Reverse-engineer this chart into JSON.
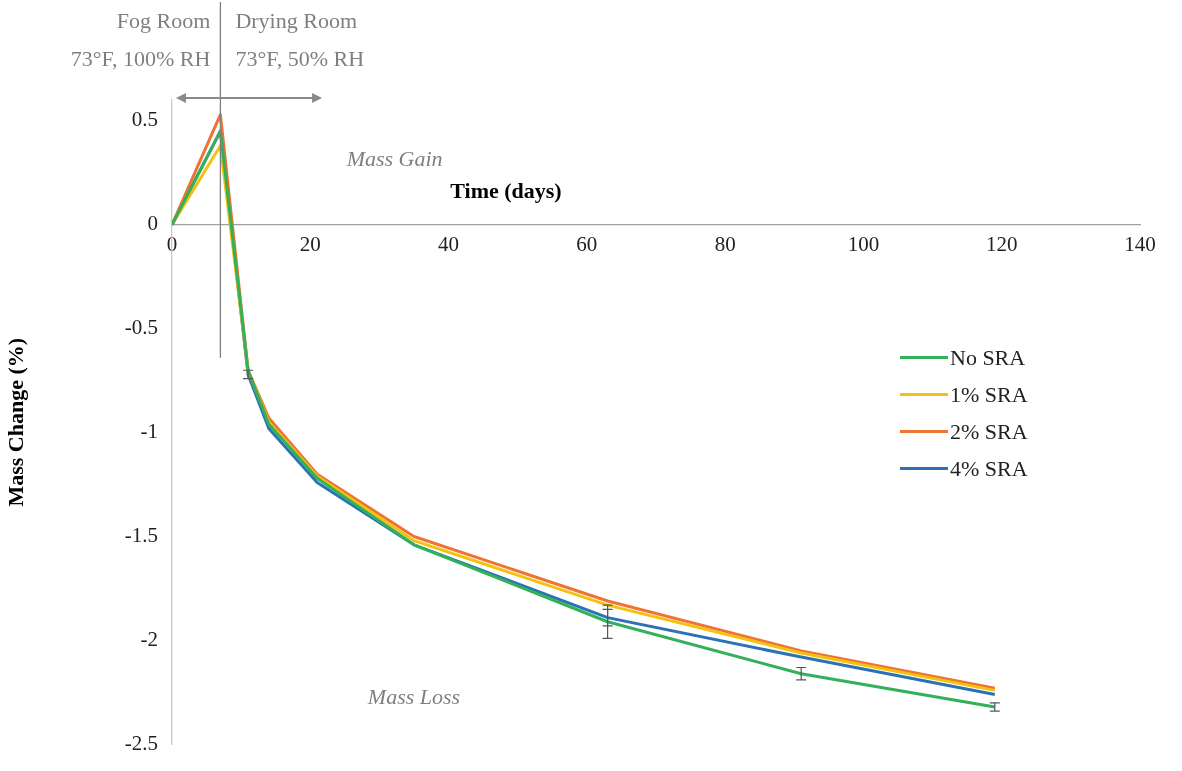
{
  "chart_data": {
    "type": "line",
    "xlabel": "Time (days)",
    "ylabel": "Mass Change (%)",
    "x": [
      0,
      7,
      11,
      14,
      21,
      35,
      63,
      91,
      119
    ],
    "xlim": [
      0,
      140
    ],
    "xticks": [
      0,
      20,
      40,
      60,
      80,
      100,
      120,
      140
    ],
    "ylim": [
      -2.5,
      0.6
    ],
    "yticks": [
      -2.5,
      -2,
      -1.5,
      -1,
      -0.5,
      0,
      0.5
    ],
    "grid": false,
    "legend": "right",
    "marker": "none",
    "line_style": "solid",
    "series": [
      {
        "name": "No SRA",
        "color": "#33b05a",
        "values": [
          0,
          0.45,
          -0.7,
          -0.96,
          -1.22,
          -1.54,
          -1.91,
          -2.16,
          -2.32
        ],
        "errors": [
          null,
          null,
          null,
          null,
          null,
          null,
          0.08,
          0.03,
          0.02
        ]
      },
      {
        "name": "1% SRA",
        "color": "#f2c20f",
        "values": [
          0,
          0.38,
          -0.7,
          -0.95,
          -1.21,
          -1.52,
          -1.83,
          -2.06,
          -2.24
        ]
      },
      {
        "name": "2% SRA",
        "color": "#ef7333",
        "values": [
          0,
          0.53,
          -0.7,
          -0.93,
          -1.2,
          -1.5,
          -1.81,
          -2.05,
          -2.23
        ]
      },
      {
        "name": "4% SRA",
        "color": "#2a72b5",
        "values": [
          0,
          0.45,
          -0.72,
          -0.98,
          -1.24,
          -1.54,
          -1.89,
          -2.08,
          -2.26
        ],
        "errors": [
          null,
          null,
          0.02,
          null,
          null,
          null,
          0.04,
          null,
          null
        ]
      }
    ],
    "ref_lines": [
      {
        "axis": "x",
        "value": 7,
        "color": "#7f7f7f"
      }
    ],
    "annotations": [
      "Fog Room\n73°F, 100% RH",
      "Drying Room\n73°F, 50% RH",
      "Mass Gain",
      "Mass Loss"
    ]
  }
}
